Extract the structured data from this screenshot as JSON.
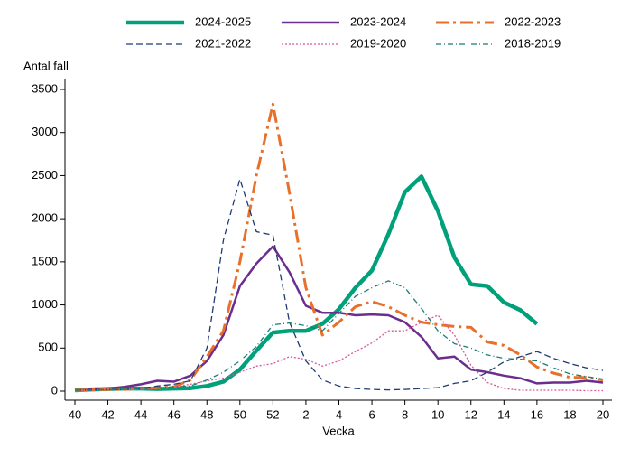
{
  "chart_data": {
    "type": "line",
    "y_label": "Antal fall",
    "x_label": "Vecka",
    "legend": "top",
    "categories": [
      "40",
      null,
      "42",
      null,
      "44",
      null,
      "46",
      null,
      "48",
      null,
      "50",
      null,
      "52",
      null,
      "2",
      null,
      "4",
      null,
      "6",
      null,
      "8",
      null,
      "10",
      null,
      "12",
      null,
      "14",
      null,
      "16",
      null,
      "18",
      null,
      "20"
    ],
    "ylim": [
      0,
      3500
    ],
    "yticks": [
      0,
      500,
      1000,
      1500,
      2000,
      2500,
      3000,
      3500
    ],
    "series": [
      {
        "name": "2024-2025",
        "color": "#00a07a",
        "width": 4.5,
        "dash": "none",
        "values": [
          10,
          20,
          25,
          30,
          30,
          25,
          30,
          35,
          60,
          110,
          250,
          470,
          680,
          700,
          700,
          780,
          950,
          1200,
          1400,
          1820,
          2310,
          2490,
          2090,
          1550,
          1240,
          1220,
          1030,
          940,
          780,
          null,
          null,
          null,
          null
        ]
      },
      {
        "name": "2023-2024",
        "color": "#6b2d8e",
        "width": 2.5,
        "dash": "none",
        "values": [
          10,
          20,
          30,
          50,
          80,
          120,
          110,
          180,
          350,
          650,
          1220,
          1480,
          1680,
          1380,
          990,
          910,
          910,
          880,
          890,
          880,
          800,
          630,
          380,
          400,
          250,
          220,
          180,
          150,
          90,
          100,
          100,
          120,
          100
        ]
      },
      {
        "name": "2022-2023",
        "color": "#e8702a",
        "width": 3,
        "dash": "14 5 3 5",
        "values": [
          10,
          15,
          20,
          20,
          30,
          40,
          50,
          130,
          400,
          700,
          1500,
          2500,
          3330,
          2300,
          1200,
          650,
          800,
          980,
          1040,
          980,
          880,
          800,
          770,
          750,
          740,
          570,
          530,
          420,
          280,
          210,
          160,
          160,
          130
        ]
      },
      {
        "name": "2021-2022",
        "color": "#1f3b73",
        "width": 1.3,
        "dash": "7 4",
        "values": [
          10,
          15,
          20,
          20,
          30,
          60,
          80,
          120,
          500,
          1750,
          2460,
          1850,
          1810,
          800,
          350,
          130,
          60,
          30,
          20,
          15,
          20,
          30,
          40,
          90,
          120,
          220,
          340,
          400,
          460,
          380,
          320,
          270,
          240
        ]
      },
      {
        "name": "2019-2020",
        "color": "#d9589a",
        "width": 1.3,
        "dash": "2 2",
        "values": [
          10,
          15,
          20,
          20,
          30,
          40,
          50,
          80,
          120,
          150,
          220,
          290,
          320,
          400,
          370,
          290,
          350,
          460,
          560,
          700,
          700,
          800,
          880,
          650,
          300,
          100,
          30,
          10,
          10,
          10,
          10,
          5,
          5
        ]
      },
      {
        "name": "2018-2019",
        "color": "#1b7c74",
        "width": 1.3,
        "dash": "6 3 1 3",
        "values": [
          10,
          15,
          20,
          20,
          30,
          40,
          50,
          60,
          130,
          220,
          350,
          520,
          770,
          790,
          760,
          700,
          900,
          1100,
          1200,
          1280,
          1200,
          960,
          700,
          550,
          500,
          420,
          380,
          370,
          350,
          270,
          200,
          170,
          140
        ]
      }
    ]
  }
}
